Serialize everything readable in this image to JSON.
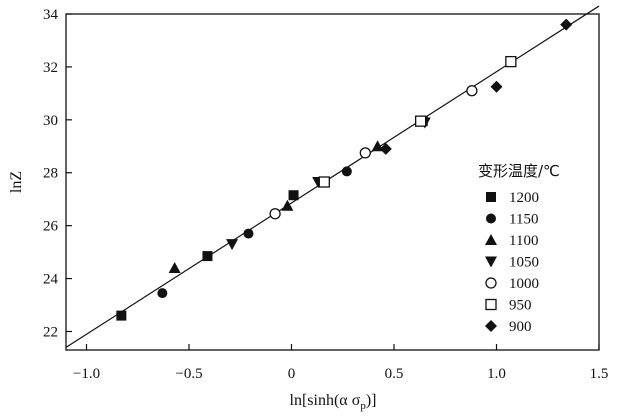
{
  "chart_data": {
    "type": "scatter",
    "xlabel_main": "ln[sinh(α σ",
    "xlabel_sub": "p",
    "xlabel_end": ")]",
    "ylabel": "lnZ",
    "xlim": [
      -1.1,
      1.5
    ],
    "ylim": [
      21.3,
      34
    ],
    "xticks": [
      -1.0,
      -0.5,
      0.0,
      0.5,
      1.0,
      1.5
    ],
    "xtick_labels": [
      "−1.0",
      "−0.5",
      "0",
      "0.5",
      "1.0",
      "1.5"
    ],
    "yticks": [
      22,
      24,
      26,
      28,
      30,
      32,
      34
    ],
    "ytick_labels": [
      "22",
      "24",
      "26",
      "28",
      "30",
      "32",
      "34"
    ],
    "legend_title": "变形温度/℃",
    "legend_position": "right",
    "grid": false,
    "fit_line": {
      "x": [
        -1.1,
        1.5
      ],
      "y": [
        21.4,
        34.3
      ]
    },
    "series": [
      {
        "name": "1200",
        "marker": "square-filled",
        "points": [
          [
            -0.83,
            22.6
          ],
          [
            -0.41,
            24.85
          ],
          [
            0.01,
            27.15
          ],
          [
            0.64,
            29.95
          ]
        ]
      },
      {
        "name": "1150",
        "marker": "circle-filled",
        "points": [
          [
            -0.63,
            23.45
          ],
          [
            -0.21,
            25.7
          ],
          [
            0.27,
            28.05
          ]
        ]
      },
      {
        "name": "1100",
        "marker": "triangle-filled",
        "points": [
          [
            -0.57,
            24.4
          ],
          [
            -0.02,
            26.75
          ],
          [
            0.42,
            29.0
          ]
        ]
      },
      {
        "name": "1050",
        "marker": "triangle-down-filled",
        "points": [
          [
            -0.29,
            25.3
          ],
          [
            0.13,
            27.65
          ],
          [
            0.65,
            29.9
          ]
        ]
      },
      {
        "name": "1000",
        "marker": "circle-open",
        "points": [
          [
            -0.08,
            26.45
          ],
          [
            0.36,
            28.75
          ],
          [
            0.88,
            31.1
          ]
        ]
      },
      {
        "name": "950",
        "marker": "square-open",
        "points": [
          [
            0.16,
            27.65
          ],
          [
            0.63,
            29.95
          ],
          [
            1.07,
            32.2
          ]
        ]
      },
      {
        "name": "900",
        "marker": "diamond-filled",
        "points": [
          [
            0.46,
            28.9
          ],
          [
            1.0,
            31.25
          ],
          [
            1.34,
            33.6
          ]
        ]
      }
    ]
  }
}
